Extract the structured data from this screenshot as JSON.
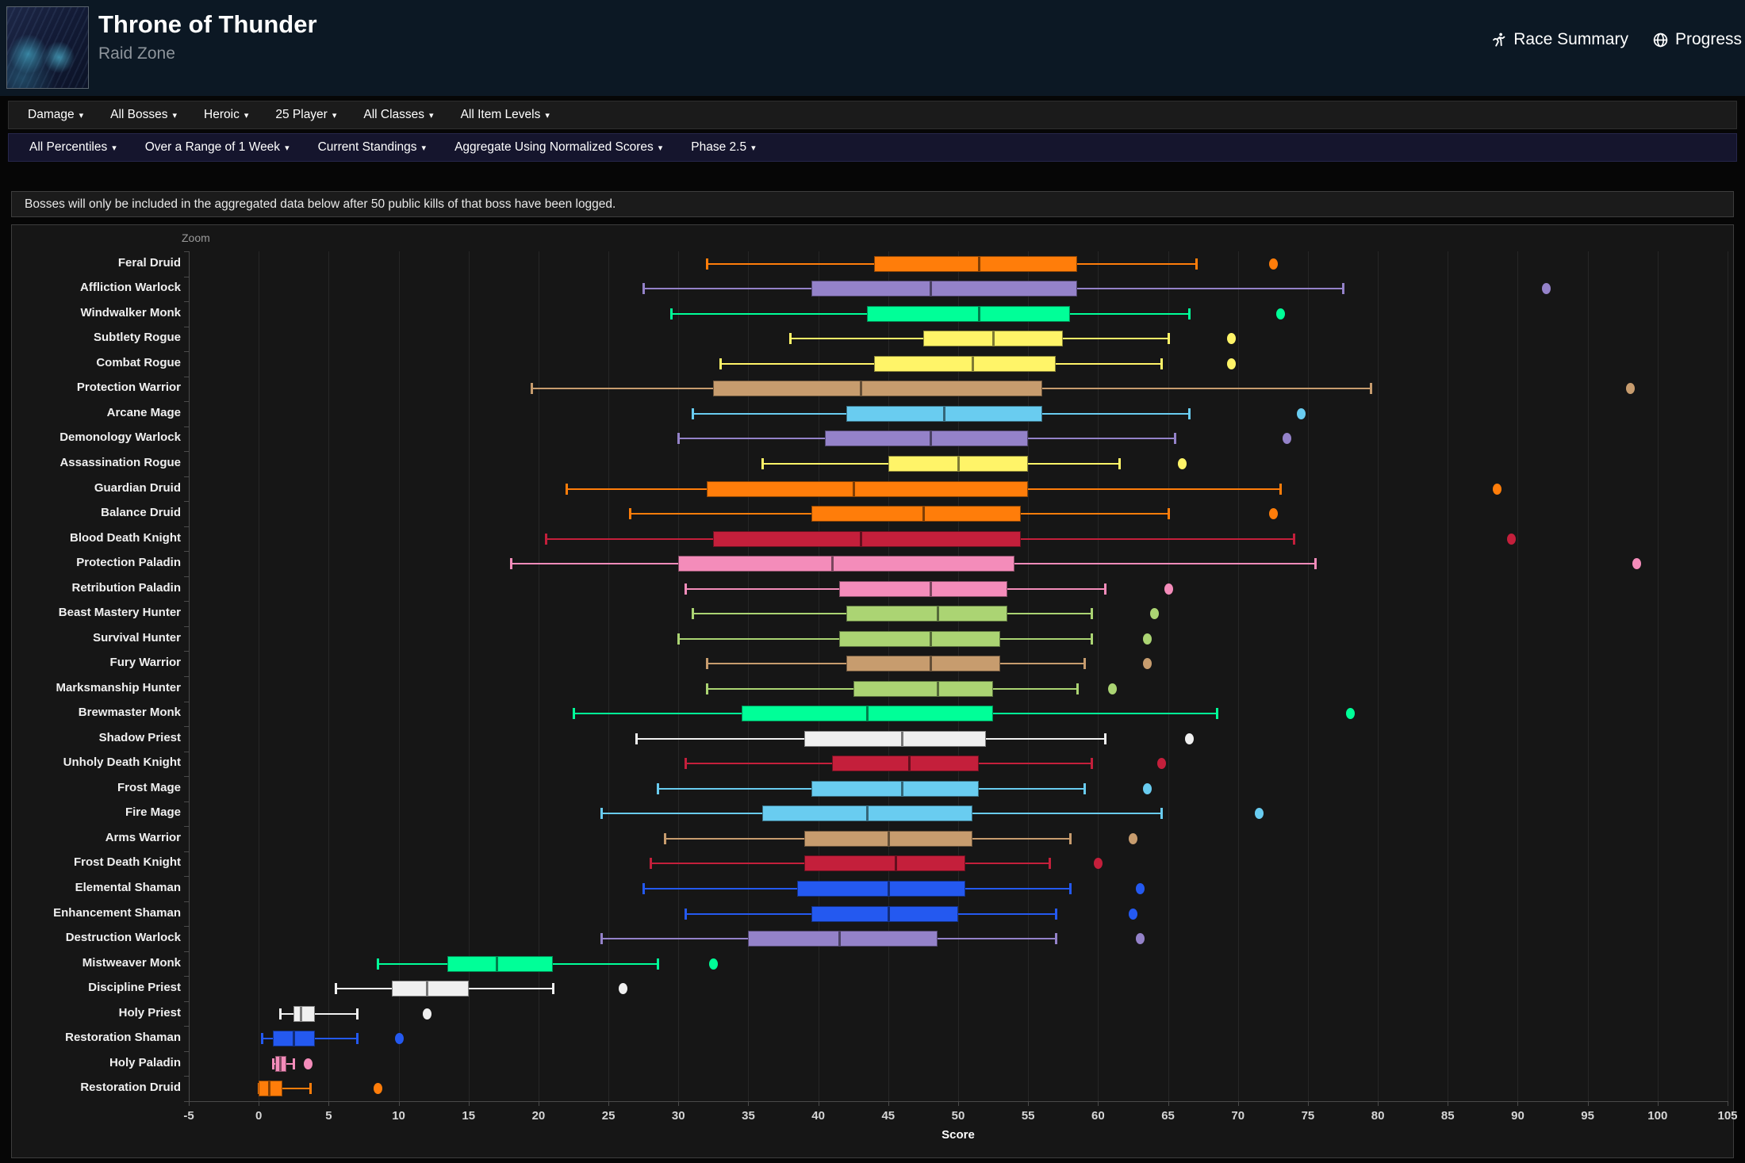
{
  "header": {
    "title": "Throne of Thunder",
    "subtitle": "Raid Zone",
    "links": [
      {
        "label": "Race Summary",
        "icon": "runner-icon"
      },
      {
        "label": "Progress",
        "icon": "globe-icon"
      }
    ]
  },
  "caret_glyph": "▾",
  "filters_primary": [
    "Damage",
    "All Bosses",
    "Heroic",
    "25 Player",
    "All Classes",
    "All Item Levels"
  ],
  "filters_secondary": [
    "All Percentiles",
    "Over a Range of 1 Week",
    "Current Standings",
    "Aggregate Using Normalized Scores",
    "Phase 2.5"
  ],
  "notice": "Bosses will only be included in the aggregated data below after 50 public kills of that boss have been logged.",
  "chart_data": {
    "type": "boxplot",
    "zoom_label": "Zoom",
    "xlabel": "Score",
    "xlim": [
      -5,
      105
    ],
    "x_tick_step": 5,
    "grid": true,
    "background": "#161616",
    "gridline_color": "#262626",
    "axis_color": "#4a4a4a",
    "colors": {
      "druid": "#FF7D0A",
      "warlock": "#9482C9",
      "monk": "#00FF98",
      "rogue": "#FFF468",
      "warrior": "#C79C6E",
      "mage": "#69CCF0",
      "deathknight": "#C41F3B",
      "paladin": "#F48CBA",
      "hunter": "#ABD473",
      "priest": "#F0F0F0",
      "shaman": "#2459F0"
    },
    "series": [
      {
        "name": "Feral Druid",
        "class": "druid",
        "low": 32,
        "q1": 44,
        "median": 51.5,
        "q3": 58.5,
        "high": 67,
        "outliers": [
          72.5
        ]
      },
      {
        "name": "Affliction Warlock",
        "class": "warlock",
        "low": 27.5,
        "q1": 39.5,
        "median": 48,
        "q3": 58.5,
        "high": 77.5,
        "outliers": [
          92
        ]
      },
      {
        "name": "Windwalker Monk",
        "class": "monk",
        "low": 29.5,
        "q1": 43.5,
        "median": 51.5,
        "q3": 58,
        "high": 66.5,
        "outliers": [
          73
        ]
      },
      {
        "name": "Subtlety Rogue",
        "class": "rogue",
        "low": 38,
        "q1": 47.5,
        "median": 52.5,
        "q3": 57.5,
        "high": 65,
        "outliers": [
          69.5
        ]
      },
      {
        "name": "Combat Rogue",
        "class": "rogue",
        "low": 33,
        "q1": 44,
        "median": 51,
        "q3": 57,
        "high": 64.5,
        "outliers": [
          69.5
        ]
      },
      {
        "name": "Protection Warrior",
        "class": "warrior",
        "low": 19.5,
        "q1": 32.5,
        "median": 43,
        "q3": 56,
        "high": 79.5,
        "outliers": [
          98
        ]
      },
      {
        "name": "Arcane Mage",
        "class": "mage",
        "low": 31,
        "q1": 42,
        "median": 49,
        "q3": 56,
        "high": 66.5,
        "outliers": [
          74.5
        ]
      },
      {
        "name": "Demonology Warlock",
        "class": "warlock",
        "low": 30,
        "q1": 40.5,
        "median": 48,
        "q3": 55,
        "high": 65.5,
        "outliers": [
          73.5
        ]
      },
      {
        "name": "Assassination Rogue",
        "class": "rogue",
        "low": 36,
        "q1": 45,
        "median": 50,
        "q3": 55,
        "high": 61.5,
        "outliers": [
          66
        ]
      },
      {
        "name": "Guardian Druid",
        "class": "druid",
        "low": 22,
        "q1": 32,
        "median": 42.5,
        "q3": 55,
        "high": 73,
        "outliers": [
          88.5
        ]
      },
      {
        "name": "Balance Druid",
        "class": "druid",
        "low": 26.5,
        "q1": 39.5,
        "median": 47.5,
        "q3": 54.5,
        "high": 65,
        "outliers": [
          72.5
        ]
      },
      {
        "name": "Blood Death Knight",
        "class": "deathknight",
        "low": 20.5,
        "q1": 32.5,
        "median": 43,
        "q3": 54.5,
        "high": 74,
        "outliers": [
          89.5
        ]
      },
      {
        "name": "Protection Paladin",
        "class": "paladin",
        "low": 18,
        "q1": 30,
        "median": 41,
        "q3": 54,
        "high": 75.5,
        "outliers": [
          98.5
        ]
      },
      {
        "name": "Retribution Paladin",
        "class": "paladin",
        "low": 30.5,
        "q1": 41.5,
        "median": 48,
        "q3": 53.5,
        "high": 60.5,
        "outliers": [
          65
        ]
      },
      {
        "name": "Beast Mastery Hunter",
        "class": "hunter",
        "low": 31,
        "q1": 42,
        "median": 48.5,
        "q3": 53.5,
        "high": 59.5,
        "outliers": [
          64
        ]
      },
      {
        "name": "Survival Hunter",
        "class": "hunter",
        "low": 30,
        "q1": 41.5,
        "median": 48,
        "q3": 53,
        "high": 59.5,
        "outliers": [
          63.5
        ]
      },
      {
        "name": "Fury Warrior",
        "class": "warrior",
        "low": 32,
        "q1": 42,
        "median": 48,
        "q3": 53,
        "high": 59,
        "outliers": [
          63.5
        ]
      },
      {
        "name": "Marksmanship Hunter",
        "class": "hunter",
        "low": 32,
        "q1": 42.5,
        "median": 48.5,
        "q3": 52.5,
        "high": 58.5,
        "outliers": [
          61
        ]
      },
      {
        "name": "Brewmaster Monk",
        "class": "monk",
        "low": 22.5,
        "q1": 34.5,
        "median": 43.5,
        "q3": 52.5,
        "high": 68.5,
        "outliers": [
          78
        ]
      },
      {
        "name": "Shadow Priest",
        "class": "priest",
        "low": 27,
        "q1": 39,
        "median": 46,
        "q3": 52,
        "high": 60.5,
        "outliers": [
          66.5
        ]
      },
      {
        "name": "Unholy Death Knight",
        "class": "deathknight",
        "low": 30.5,
        "q1": 41,
        "median": 46.5,
        "q3": 51.5,
        "high": 59.5,
        "outliers": [
          64.5
        ]
      },
      {
        "name": "Frost Mage",
        "class": "mage",
        "low": 28.5,
        "q1": 39.5,
        "median": 46,
        "q3": 51.5,
        "high": 59,
        "outliers": [
          63.5
        ]
      },
      {
        "name": "Fire Mage",
        "class": "mage",
        "low": 24.5,
        "q1": 36,
        "median": 43.5,
        "q3": 51,
        "high": 64.5,
        "outliers": [
          71.5
        ]
      },
      {
        "name": "Arms Warrior",
        "class": "warrior",
        "low": 29,
        "q1": 39,
        "median": 45,
        "q3": 51,
        "high": 58,
        "outliers": [
          62.5
        ]
      },
      {
        "name": "Frost Death Knight",
        "class": "deathknight",
        "low": 28,
        "q1": 39,
        "median": 45.5,
        "q3": 50.5,
        "high": 56.5,
        "outliers": [
          60
        ]
      },
      {
        "name": "Elemental Shaman",
        "class": "shaman",
        "low": 27.5,
        "q1": 38.5,
        "median": 45,
        "q3": 50.5,
        "high": 58,
        "outliers": [
          63
        ]
      },
      {
        "name": "Enhancement Shaman",
        "class": "shaman",
        "low": 30.5,
        "q1": 39.5,
        "median": 45,
        "q3": 50,
        "high": 57,
        "outliers": [
          62.5
        ]
      },
      {
        "name": "Destruction Warlock",
        "class": "warlock",
        "low": 24.5,
        "q1": 35,
        "median": 41.5,
        "q3": 48.5,
        "high": 57,
        "outliers": [
          63
        ]
      },
      {
        "name": "Mistweaver Monk",
        "class": "monk",
        "low": 8.5,
        "q1": 13.5,
        "median": 17,
        "q3": 21,
        "high": 28.5,
        "outliers": [
          32.5
        ]
      },
      {
        "name": "Discipline Priest",
        "class": "priest",
        "low": 5.5,
        "q1": 9.5,
        "median": 12,
        "q3": 15,
        "high": 21,
        "outliers": [
          26
        ]
      },
      {
        "name": "Holy Priest",
        "class": "priest",
        "low": 1.5,
        "q1": 2.5,
        "median": 3,
        "q3": 4,
        "high": 7,
        "outliers": [
          12
        ]
      },
      {
        "name": "Restoration Shaman",
        "class": "shaman",
        "low": 0.2,
        "q1": 1,
        "median": 2.5,
        "q3": 4,
        "high": 7,
        "outliers": [
          10
        ]
      },
      {
        "name": "Holy Paladin",
        "class": "paladin",
        "low": 1,
        "q1": 1.2,
        "median": 1.5,
        "q3": 2,
        "high": 2.5,
        "outliers": [
          3.5
        ]
      },
      {
        "name": "Restoration Druid",
        "class": "druid",
        "low": 0,
        "q1": 0,
        "median": 0.7,
        "q3": 1.7,
        "high": 3.7,
        "outliers": [
          8.5
        ]
      }
    ]
  }
}
